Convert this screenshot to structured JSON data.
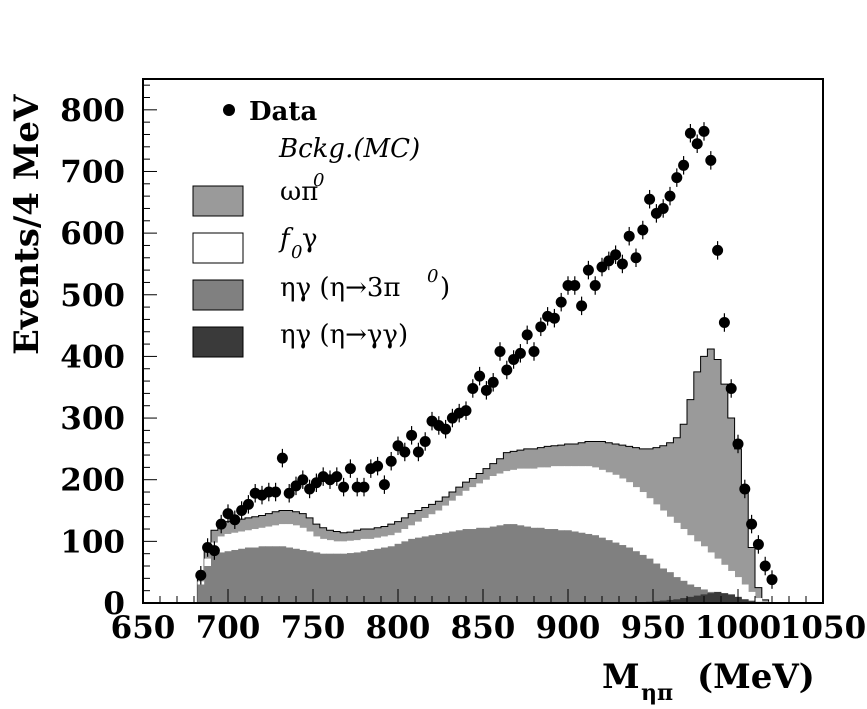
{
  "chart_data": {
    "type": "histogram_with_points",
    "xlabel": "M",
    "xlabel_sub": "ηπ",
    "xlabel_unit": "(MeV)",
    "ylabel": "Events/4 MeV",
    "xlim": [
      650,
      1050
    ],
    "ylim": [
      0,
      850
    ],
    "x_ticks": [
      650,
      700,
      750,
      800,
      850,
      900,
      950,
      1000,
      1050
    ],
    "y_ticks": [
      0,
      100,
      200,
      300,
      400,
      500,
      600,
      700,
      800
    ],
    "legend": {
      "data_label": "Data",
      "bckg_title": "Bckg.(MC)",
      "entries": [
        {
          "id": "omega",
          "text": "ωπ",
          "sup": "0",
          "color": "#9a9a9a"
        },
        {
          "id": "f0",
          "text": "γ",
          "prefix": "f",
          "sub": "0",
          "color": "#ffffff"
        },
        {
          "id": "eta3",
          "text": "ηγ (η→3π",
          "sup": "0",
          "suffix": ")",
          "color": "#808080"
        },
        {
          "id": "etagg",
          "text": "ηγ (η→γγ)",
          "color": "#3a3a3a"
        }
      ]
    },
    "bin_width": 4,
    "bin_start": 682,
    "stack_total": [
      45,
      90,
      118,
      128,
      132,
      134,
      136,
      138,
      140,
      142,
      145,
      148,
      150,
      150,
      148,
      145,
      138,
      128,
      122,
      118,
      116,
      114,
      115,
      118,
      120,
      120,
      122,
      124,
      128,
      132,
      138,
      145,
      150,
      155,
      160,
      165,
      172,
      180,
      188,
      196,
      202,
      210,
      218,
      226,
      234,
      244,
      246,
      248,
      250,
      250,
      252,
      254,
      255,
      256,
      258,
      258,
      260,
      262,
      262,
      262,
      260,
      258,
      256,
      254,
      252,
      250,
      250,
      252,
      255,
      260,
      268,
      290,
      330,
      375,
      400,
      412,
      395,
      355,
      300,
      250,
      180,
      90,
      25,
      5
    ],
    "stack_f0_top": [
      35,
      72,
      98,
      108,
      112,
      114,
      116,
      118,
      120,
      122,
      124,
      126,
      128,
      128,
      126,
      122,
      116,
      108,
      104,
      102,
      100,
      100,
      101,
      102,
      104,
      104,
      106,
      108,
      110,
      114,
      120,
      126,
      132,
      138,
      144,
      150,
      158,
      166,
      174,
      182,
      188,
      194,
      200,
      206,
      210,
      214,
      216,
      218,
      218,
      218,
      220,
      220,
      222,
      222,
      222,
      222,
      222,
      222,
      220,
      216,
      212,
      208,
      202,
      196,
      188,
      180,
      170,
      160,
      150,
      140,
      130,
      120,
      110,
      100,
      92,
      82,
      72,
      62,
      52,
      42,
      30,
      18,
      8,
      2
    ],
    "stack_eta3_top": [
      30,
      60,
      78,
      82,
      84,
      86,
      88,
      90,
      90,
      92,
      92,
      92,
      92,
      90,
      88,
      86,
      84,
      82,
      80,
      80,
      80,
      80,
      81,
      82,
      84,
      86,
      88,
      90,
      92,
      96,
      100,
      104,
      106,
      108,
      110,
      112,
      114,
      116,
      118,
      120,
      120,
      122,
      122,
      124,
      126,
      128,
      128,
      126,
      124,
      122,
      122,
      120,
      120,
      118,
      118,
      116,
      114,
      112,
      110,
      106,
      102,
      98,
      94,
      90,
      84,
      78,
      72,
      64,
      56,
      50,
      42,
      36,
      30,
      26,
      22,
      18,
      14,
      12,
      10,
      8,
      6,
      4,
      2,
      1
    ],
    "stack_etagg_top": [
      0,
      0,
      0,
      0,
      0,
      0,
      0,
      0,
      0,
      0,
      0,
      0,
      0,
      0,
      0,
      0,
      0,
      0,
      0,
      0,
      0,
      0,
      0,
      0,
      0,
      0,
      0,
      0,
      0,
      0,
      0,
      0,
      0,
      0,
      0,
      0,
      0,
      0,
      0,
      0,
      0,
      0,
      0,
      0,
      0,
      0,
      0,
      0,
      0,
      0,
      0,
      0,
      0,
      0,
      0,
      0,
      0,
      0,
      0,
      0,
      0,
      0,
      0,
      0,
      0,
      0,
      2,
      3,
      4,
      5,
      6,
      8,
      10,
      12,
      14,
      16,
      18,
      16,
      14,
      10,
      6,
      3,
      1,
      0
    ],
    "data_points": [
      {
        "x": 684,
        "y": 45
      },
      {
        "x": 688,
        "y": 90
      },
      {
        "x": 692,
        "y": 85
      },
      {
        "x": 696,
        "y": 128
      },
      {
        "x": 700,
        "y": 145
      },
      {
        "x": 704,
        "y": 135
      },
      {
        "x": 708,
        "y": 150
      },
      {
        "x": 712,
        "y": 160
      },
      {
        "x": 716,
        "y": 178
      },
      {
        "x": 720,
        "y": 175
      },
      {
        "x": 724,
        "y": 180
      },
      {
        "x": 728,
        "y": 180
      },
      {
        "x": 732,
        "y": 235
      },
      {
        "x": 736,
        "y": 178
      },
      {
        "x": 740,
        "y": 190
      },
      {
        "x": 744,
        "y": 200
      },
      {
        "x": 748,
        "y": 185
      },
      {
        "x": 752,
        "y": 195
      },
      {
        "x": 756,
        "y": 205
      },
      {
        "x": 760,
        "y": 200
      },
      {
        "x": 764,
        "y": 205
      },
      {
        "x": 768,
        "y": 188
      },
      {
        "x": 772,
        "y": 218
      },
      {
        "x": 776,
        "y": 188
      },
      {
        "x": 780,
        "y": 188
      },
      {
        "x": 784,
        "y": 218
      },
      {
        "x": 788,
        "y": 222
      },
      {
        "x": 792,
        "y": 192
      },
      {
        "x": 796,
        "y": 230
      },
      {
        "x": 800,
        "y": 255
      },
      {
        "x": 804,
        "y": 245
      },
      {
        "x": 808,
        "y": 272
      },
      {
        "x": 812,
        "y": 245
      },
      {
        "x": 816,
        "y": 262
      },
      {
        "x": 820,
        "y": 295
      },
      {
        "x": 824,
        "y": 288
      },
      {
        "x": 828,
        "y": 282
      },
      {
        "x": 832,
        "y": 300
      },
      {
        "x": 836,
        "y": 308
      },
      {
        "x": 840,
        "y": 312
      },
      {
        "x": 844,
        "y": 348
      },
      {
        "x": 848,
        "y": 368
      },
      {
        "x": 852,
        "y": 345
      },
      {
        "x": 856,
        "y": 358
      },
      {
        "x": 860,
        "y": 408
      },
      {
        "x": 864,
        "y": 378
      },
      {
        "x": 868,
        "y": 395
      },
      {
        "x": 872,
        "y": 405
      },
      {
        "x": 876,
        "y": 435
      },
      {
        "x": 880,
        "y": 408
      },
      {
        "x": 884,
        "y": 448
      },
      {
        "x": 888,
        "y": 465
      },
      {
        "x": 892,
        "y": 462
      },
      {
        "x": 896,
        "y": 488
      },
      {
        "x": 900,
        "y": 515
      },
      {
        "x": 904,
        "y": 515
      },
      {
        "x": 908,
        "y": 482
      },
      {
        "x": 912,
        "y": 540
      },
      {
        "x": 916,
        "y": 515
      },
      {
        "x": 920,
        "y": 545
      },
      {
        "x": 924,
        "y": 555
      },
      {
        "x": 928,
        "y": 565
      },
      {
        "x": 932,
        "y": 550
      },
      {
        "x": 936,
        "y": 595
      },
      {
        "x": 940,
        "y": 560
      },
      {
        "x": 944,
        "y": 605
      },
      {
        "x": 948,
        "y": 655
      },
      {
        "x": 952,
        "y": 632
      },
      {
        "x": 956,
        "y": 640
      },
      {
        "x": 960,
        "y": 660
      },
      {
        "x": 964,
        "y": 690
      },
      {
        "x": 968,
        "y": 710
      },
      {
        "x": 972,
        "y": 762
      },
      {
        "x": 976,
        "y": 745
      },
      {
        "x": 980,
        "y": 765
      },
      {
        "x": 984,
        "y": 718
      },
      {
        "x": 988,
        "y": 572
      },
      {
        "x": 992,
        "y": 455
      },
      {
        "x": 996,
        "y": 348
      },
      {
        "x": 1000,
        "y": 258
      },
      {
        "x": 1004,
        "y": 185
      },
      {
        "x": 1008,
        "y": 128
      },
      {
        "x": 1012,
        "y": 95
      },
      {
        "x": 1016,
        "y": 60
      },
      {
        "x": 1020,
        "y": 38
      }
    ],
    "data_error": 15
  }
}
